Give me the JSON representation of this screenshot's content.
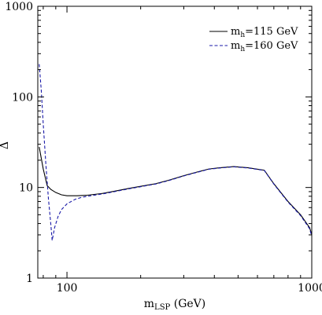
{
  "chart_data": {
    "type": "line",
    "title": "",
    "xlabel": "m_LSP (GeV)",
    "xlabel_main": "m",
    "xlabel_sub": "LSP",
    "xlabel_unit": " (GeV)",
    "ylabel": "Δ",
    "x_scale": "log",
    "y_scale": "log",
    "xlim": [
      76,
      1000
    ],
    "ylim": [
      1,
      1000
    ],
    "x_ticks": [
      {
        "value": 100,
        "label": "100"
      },
      {
        "value": 1000,
        "label": "1000"
      }
    ],
    "y_ticks": [
      {
        "value": 1,
        "label": "1"
      },
      {
        "value": 10,
        "label": "10"
      },
      {
        "value": 100,
        "label": "100"
      },
      {
        "value": 1000,
        "label": "1000"
      }
    ],
    "grid": false,
    "legend_position": "top-right",
    "series": [
      {
        "name": "m_h=115 GeV",
        "legend_main": "m",
        "legend_sub": "h",
        "legend_rest": "=115 GeV",
        "color": "#000000",
        "dash": "solid",
        "x": [
          77,
          80,
          83,
          86,
          90,
          95,
          100,
          110,
          120,
          140,
          160,
          180,
          200,
          230,
          260,
          300,
          340,
          380,
          420,
          480,
          550,
          640,
          700,
          800,
          900,
          980,
          1000
        ],
        "y": [
          28,
          16,
          10.5,
          9.5,
          8.8,
          8.3,
          8.1,
          8.1,
          8.2,
          8.6,
          9.2,
          9.8,
          10.3,
          11.0,
          12.0,
          13.5,
          14.8,
          16.0,
          16.5,
          17.0,
          16.5,
          15.5,
          11.0,
          7.0,
          5.0,
          3.6,
          3.0
        ]
      },
      {
        "name": "m_h=160 GeV",
        "legend_main": "m",
        "legend_sub": "h",
        "legend_rest": "=160 GeV",
        "color": "#1a1aa8",
        "dash": "dashed",
        "x": [
          77,
          78.5,
          80,
          82,
          84,
          86,
          87,
          89,
          92,
          95,
          100,
          108,
          115,
          125,
          140,
          160,
          180,
          200,
          230,
          260,
          300,
          340,
          380,
          420,
          480,
          550,
          640,
          700,
          800,
          900,
          980,
          1000
        ],
        "y": [
          230,
          120,
          50,
          18,
          7.5,
          3.8,
          2.6,
          3.6,
          4.8,
          5.7,
          6.6,
          7.4,
          7.8,
          8.1,
          8.5,
          9.1,
          9.7,
          10.2,
          10.9,
          11.9,
          13.4,
          14.7,
          15.9,
          16.4,
          16.9,
          16.4,
          15.4,
          10.9,
          6.9,
          4.9,
          3.5,
          2.9
        ]
      }
    ]
  }
}
